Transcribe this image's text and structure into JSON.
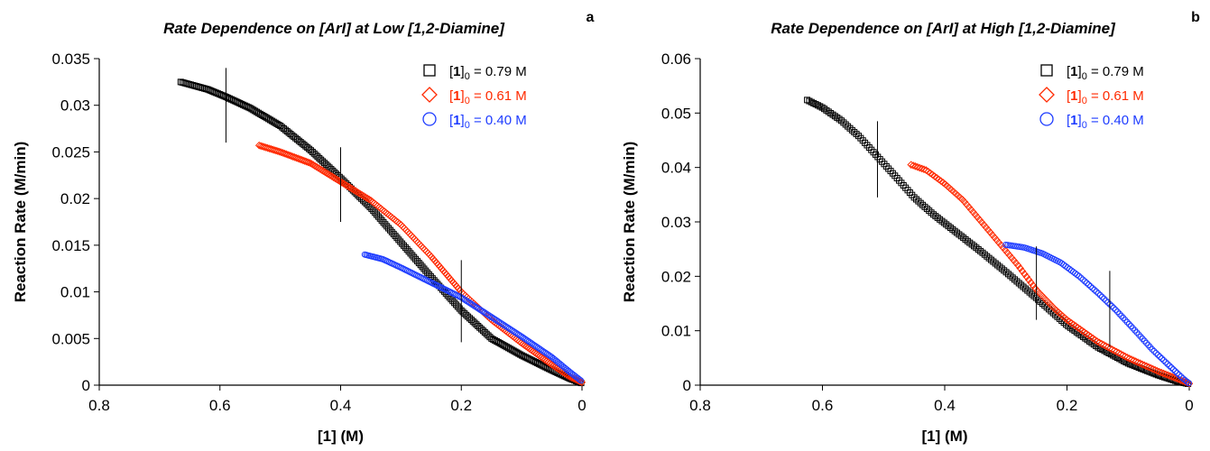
{
  "chart_data": [
    {
      "type": "scatter",
      "panel": "a",
      "title": "Rate Dependence on [ArI] at Low [1,2-Diamine]",
      "xlabel": "[1] (M)",
      "ylabel": "Reaction Rate (M/min)",
      "xlim": [
        0.8,
        0
      ],
      "ylim": [
        0,
        0.035
      ],
      "x_ticks": [
        "0.8",
        "0.6",
        "0.4",
        "0.2",
        "0"
      ],
      "y_ticks": [
        "0",
        "0.005",
        "0.01",
        "0.015",
        "0.02",
        "0.025",
        "0.03",
        "0.035"
      ],
      "x_tick_values": [
        0.8,
        0.6,
        0.4,
        0.2,
        0
      ],
      "y_tick_values": [
        0,
        0.005,
        0.01,
        0.015,
        0.02,
        0.025,
        0.03,
        0.035
      ],
      "grid": false,
      "legend_position": "top-right",
      "series": [
        {
          "name": "[1]0 = 0.79 M",
          "label_bold": "1",
          "label_sub": "0",
          "label_rest": " = 0.79 M",
          "marker": "square",
          "color": "#000000",
          "x": [
            0.665,
            0.62,
            0.59,
            0.55,
            0.5,
            0.45,
            0.4,
            0.35,
            0.3,
            0.25,
            0.2,
            0.15,
            0.1,
            0.05,
            0.02,
            0.0
          ],
          "y": [
            0.0325,
            0.0317,
            0.0309,
            0.0297,
            0.0278,
            0.0252,
            0.0222,
            0.019,
            0.0153,
            0.0116,
            0.008,
            0.005,
            0.0032,
            0.0016,
            0.0007,
            0.0002
          ]
        },
        {
          "name": "[1]0 = 0.61 M",
          "label_bold": "1",
          "label_sub": "0",
          "label_rest": " = 0.61 M",
          "marker": "diamond",
          "color": "#ff2a00",
          "x": [
            0.535,
            0.5,
            0.45,
            0.4,
            0.35,
            0.3,
            0.25,
            0.2,
            0.15,
            0.1,
            0.05,
            0.02,
            0.0
          ],
          "y": [
            0.0257,
            0.025,
            0.0238,
            0.0218,
            0.0198,
            0.0172,
            0.0138,
            0.01,
            0.007,
            0.0045,
            0.0022,
            0.0009,
            0.0003
          ]
        },
        {
          "name": "[1]0 = 0.40 M",
          "label_bold": "1",
          "label_sub": "0",
          "label_rest": " = 0.40 M",
          "marker": "circle",
          "color": "#1e3cff",
          "x": [
            0.36,
            0.33,
            0.3,
            0.25,
            0.2,
            0.15,
            0.1,
            0.05,
            0.02,
            0.0
          ],
          "y": [
            0.014,
            0.0135,
            0.0126,
            0.011,
            0.0094,
            0.0073,
            0.0052,
            0.003,
            0.0014,
            0.0004
          ]
        }
      ],
      "error_bars": [
        {
          "x": 0.59,
          "y_low": 0.026,
          "y_high": 0.034
        },
        {
          "x": 0.4,
          "y_low": 0.0175,
          "y_high": 0.0255
        },
        {
          "x": 0.2,
          "y_low": 0.0046,
          "y_high": 0.0134
        }
      ]
    },
    {
      "type": "scatter",
      "panel": "b",
      "title": "Rate Dependence on [ArI] at High [1,2-Diamine]",
      "xlabel": "[1] (M)",
      "ylabel": "Reaction Rate (M/min)",
      "xlim": [
        0.8,
        0
      ],
      "ylim": [
        0,
        0.06
      ],
      "x_ticks": [
        "0.8",
        "0.6",
        "0.4",
        "0.2",
        "0"
      ],
      "y_ticks": [
        "0",
        "0.01",
        "0.02",
        "0.03",
        "0.04",
        "0.05",
        "0.06"
      ],
      "x_tick_values": [
        0.8,
        0.6,
        0.4,
        0.2,
        0
      ],
      "y_tick_values": [
        0,
        0.01,
        0.02,
        0.03,
        0.04,
        0.05,
        0.06
      ],
      "grid": false,
      "legend_position": "top-right",
      "series": [
        {
          "name": "[1]0 = 0.79 M",
          "label_bold": "1",
          "label_sub": "0",
          "label_rest": " = 0.79 M",
          "marker": "square",
          "color": "#000000",
          "x": [
            0.625,
            0.6,
            0.57,
            0.54,
            0.51,
            0.48,
            0.45,
            0.42,
            0.38,
            0.34,
            0.3,
            0.25,
            0.2,
            0.15,
            0.1,
            0.05,
            0.02,
            0.0
          ],
          "y": [
            0.0524,
            0.051,
            0.0487,
            0.0457,
            0.042,
            0.0383,
            0.0345,
            0.0315,
            0.028,
            0.0245,
            0.0208,
            0.016,
            0.011,
            0.007,
            0.004,
            0.0018,
            0.0007,
            0.0002
          ]
        },
        {
          "name": "[1]0 = 0.61 M",
          "label_bold": "1",
          "label_sub": "0",
          "label_rest": " = 0.61 M",
          "marker": "diamond",
          "color": "#ff2a00",
          "x": [
            0.455,
            0.43,
            0.4,
            0.37,
            0.34,
            0.31,
            0.28,
            0.25,
            0.22,
            0.2,
            0.15,
            0.1,
            0.05,
            0.02,
            0.0
          ],
          "y": [
            0.0405,
            0.0395,
            0.037,
            0.034,
            0.03,
            0.026,
            0.022,
            0.0175,
            0.014,
            0.012,
            0.008,
            0.005,
            0.0025,
            0.0012,
            0.0003
          ]
        },
        {
          "name": "[1]0 = 0.40 M",
          "label_bold": "1",
          "label_sub": "0",
          "label_rest": " = 0.40 M",
          "marker": "circle",
          "color": "#1e3cff",
          "x": [
            0.3,
            0.27,
            0.24,
            0.21,
            0.18,
            0.15,
            0.12,
            0.09,
            0.06,
            0.03,
            0.01,
            0.0
          ],
          "y": [
            0.0258,
            0.0253,
            0.0242,
            0.0225,
            0.02,
            0.017,
            0.0138,
            0.0102,
            0.0065,
            0.0033,
            0.0012,
            0.0003
          ]
        }
      ],
      "error_bars": [
        {
          "x": 0.51,
          "y_low": 0.0345,
          "y_high": 0.0485
        },
        {
          "x": 0.25,
          "y_low": 0.012,
          "y_high": 0.0255
        },
        {
          "x": 0.13,
          "y_low": 0.007,
          "y_high": 0.021
        }
      ]
    }
  ]
}
